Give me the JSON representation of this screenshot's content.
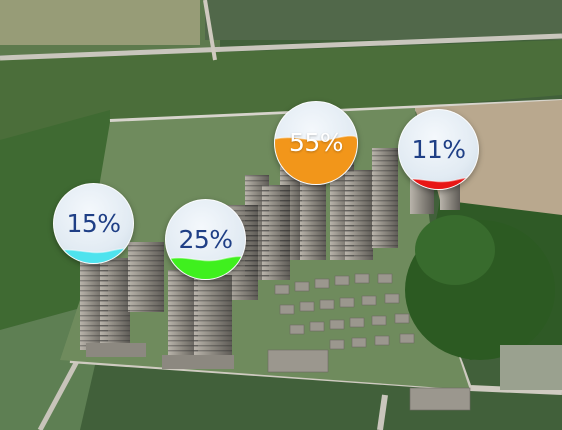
{
  "badges": [
    {
      "label": "15%",
      "level": 0.15,
      "color": "#4fe3ee"
    },
    {
      "label": "25%",
      "level": 0.25,
      "color": "#3ff01e"
    },
    {
      "label": "55%",
      "level": 0.55,
      "color": "#f2961a"
    },
    {
      "label": "11%",
      "level": 0.11,
      "color": "#e81616"
    }
  ]
}
